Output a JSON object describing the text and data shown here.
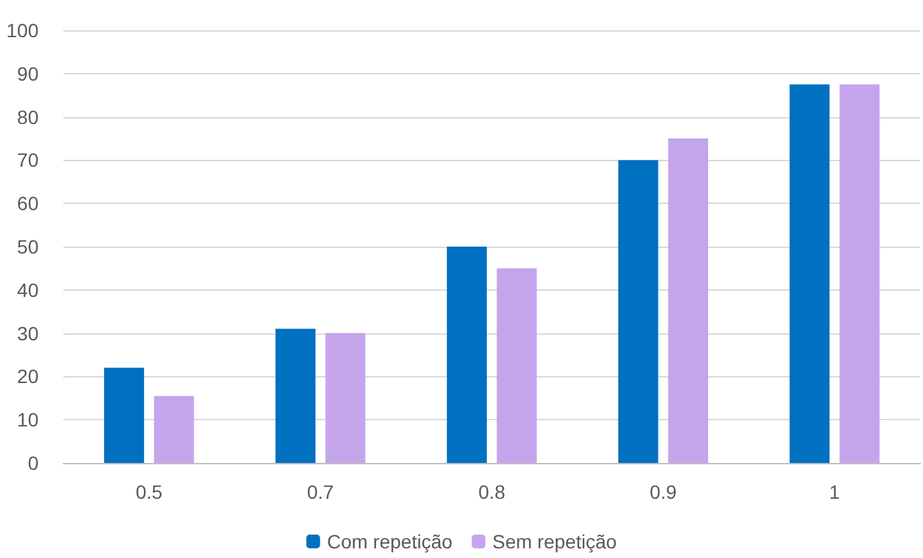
{
  "chart_data": {
    "type": "bar",
    "categories": [
      "0.5",
      "0.7",
      "0.8",
      "0.9",
      "1"
    ],
    "series": [
      {
        "name": "Com repetição",
        "color": "#0070c0",
        "values": [
          22,
          31,
          50,
          70,
          87.5
        ]
      },
      {
        "name": "Sem repetição",
        "color": "#c4a5ec",
        "values": [
          15.5,
          30,
          45,
          75,
          87.5
        ]
      }
    ],
    "ylim": [
      0,
      100
    ],
    "yticks": [
      0,
      10,
      20,
      30,
      40,
      50,
      60,
      70,
      80,
      90,
      100
    ],
    "grid": "y",
    "legend": "bottom"
  }
}
